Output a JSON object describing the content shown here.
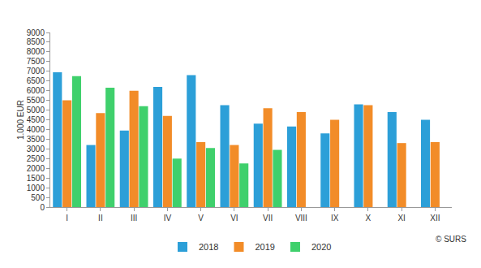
{
  "chart_data": {
    "type": "bar",
    "y_label": "1.000 EUR",
    "categories": [
      "I",
      "II",
      "III",
      "IV",
      "V",
      "VI",
      "VII",
      "VIII",
      "IX",
      "X",
      "XI",
      "XII"
    ],
    "series": [
      {
        "name": "2018",
        "color": "#2c9fd8",
        "values": [
          6950,
          3200,
          3950,
          6200,
          6800,
          5250,
          4300,
          4150,
          3800,
          5300,
          4900,
          4500
        ]
      },
      {
        "name": "2019",
        "color": "#f28c28",
        "values": [
          5500,
          4850,
          6000,
          4700,
          3350,
          3200,
          5100,
          4900,
          4500,
          5250,
          3300,
          3350
        ]
      },
      {
        "name": "2020",
        "color": "#3fd06c",
        "values": [
          6750,
          6150,
          5200,
          2500,
          3050,
          2250,
          2950,
          null,
          null,
          null,
          null,
          null
        ]
      }
    ],
    "ylim": [
      0,
      9000
    ],
    "yticks": [
      0,
      500,
      1000,
      1500,
      2000,
      2500,
      3000,
      3500,
      4000,
      4500,
      5000,
      5500,
      6000,
      6500,
      7000,
      7500,
      8000,
      8500,
      9000
    ],
    "grid": false,
    "legend": "bottom",
    "annotations": [
      "© SURS"
    ]
  }
}
